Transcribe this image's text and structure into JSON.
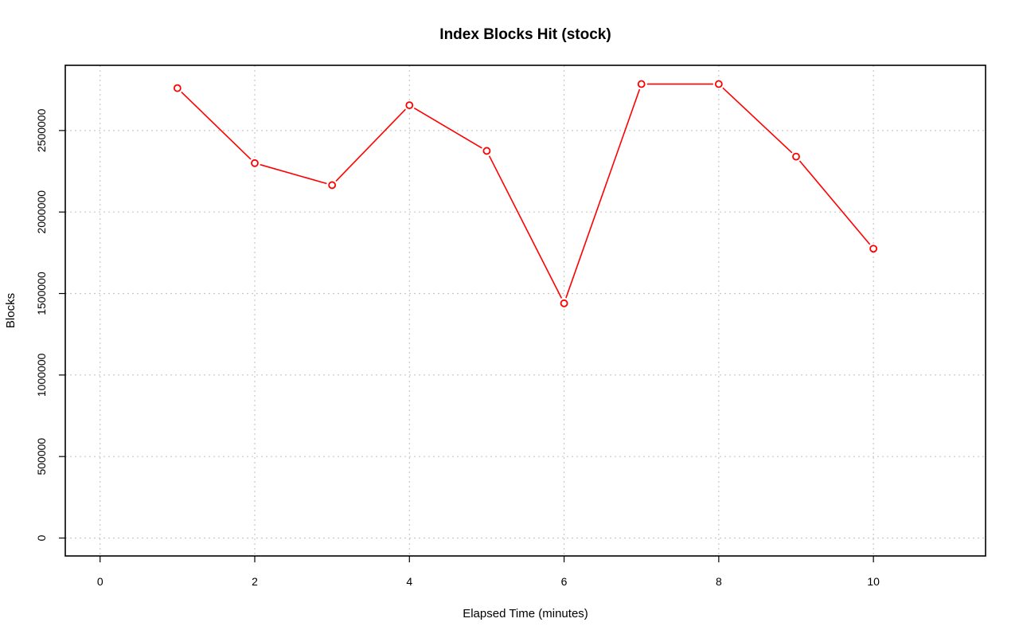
{
  "chart_data": {
    "type": "line",
    "title": "Index Blocks Hit (stock)",
    "xlabel": "Elapsed Time (minutes)",
    "ylabel": "Blocks",
    "xlim": [
      -0.45,
      11.45
    ],
    "ylim": [
      -110000,
      2900000
    ],
    "x_ticks": [
      0,
      2,
      4,
      6,
      8,
      10
    ],
    "y_ticks": [
      0,
      500000,
      1000000,
      1500000,
      2000000,
      2500000
    ],
    "x_tick_labels": [
      "0",
      "2",
      "4",
      "6",
      "8",
      "10"
    ],
    "y_tick_labels": [
      "0",
      "500000",
      "1000000",
      "1500000",
      "2000000",
      "2500000"
    ],
    "grid": true,
    "grid_x": [
      0,
      2,
      4,
      6,
      8,
      10
    ],
    "grid_y": [
      0,
      500000,
      1000000,
      1500000,
      2000000,
      2500000
    ],
    "series": [
      {
        "color": "#ff0000",
        "marker": "open-circle",
        "x": [
          1,
          2,
          3,
          4,
          5,
          6,
          7,
          8,
          9,
          10
        ],
        "y": [
          2760000,
          2300000,
          2165000,
          2655000,
          2375000,
          1440000,
          2785000,
          2785000,
          2340000,
          1775000
        ]
      }
    ]
  }
}
